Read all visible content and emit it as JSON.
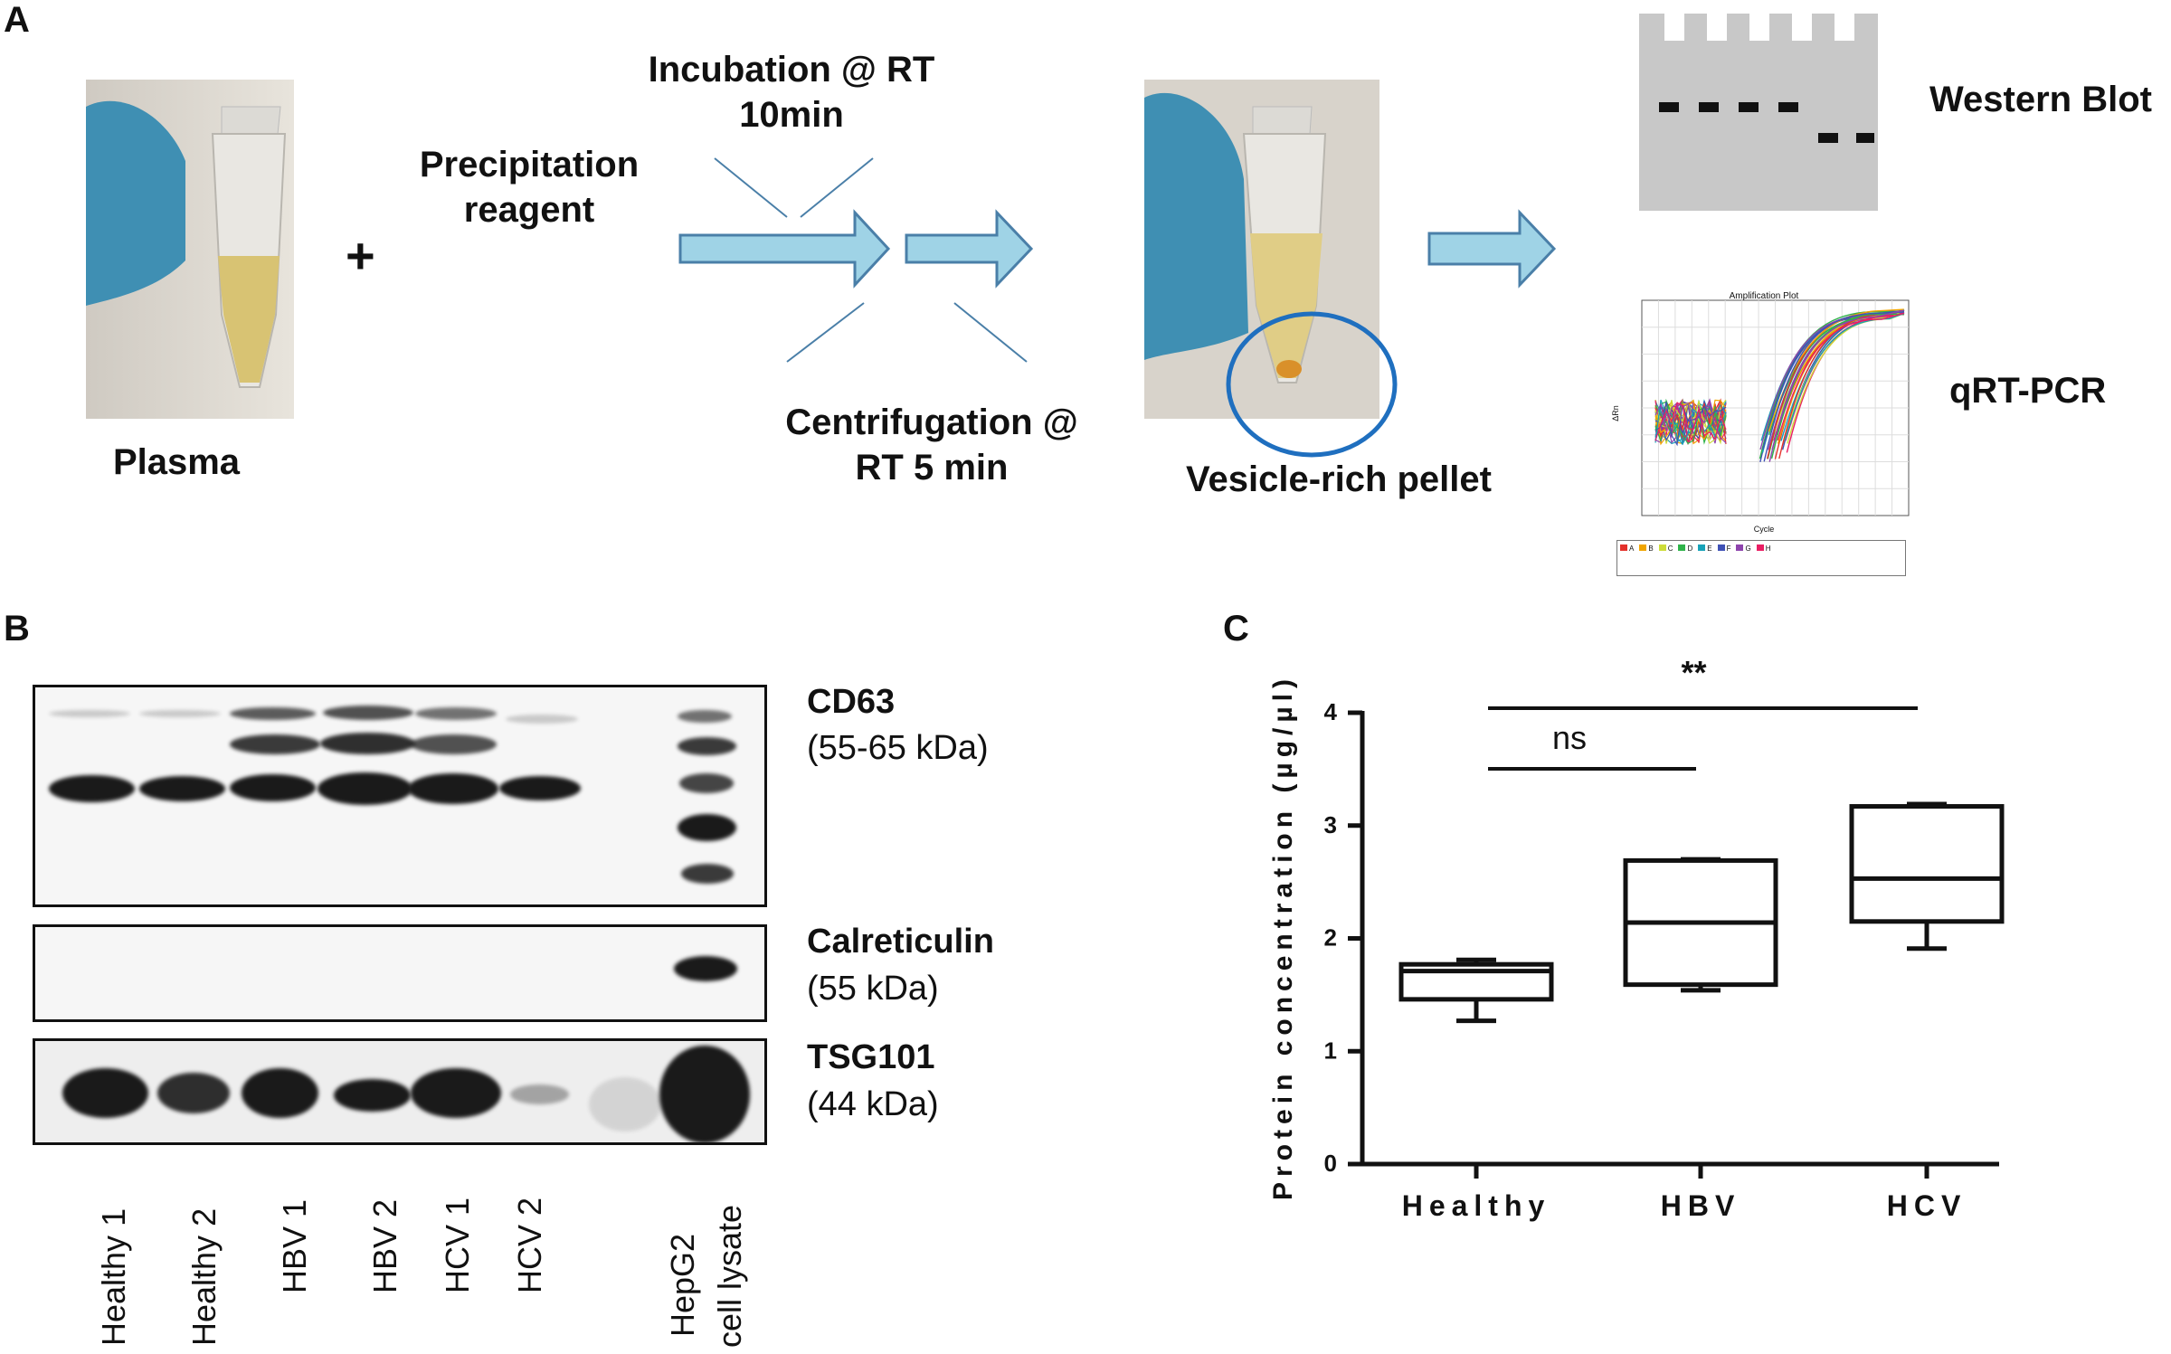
{
  "panel_a": {
    "letter": "A",
    "plasma_label": "Plasma",
    "plus_sign": "+",
    "reagent_line1": "Precipitation",
    "reagent_line2": "reagent",
    "incubation_line1": "Incubation @ RT",
    "incubation_line2": "10min",
    "centrifugation_line1": "Centrifugation @",
    "centrifugation_line2": "RT 5 min",
    "pellet_label": "Vesicle-rich pellet",
    "western_label": "Western Blot",
    "qpcr_label": "qRT-PCR",
    "qpcr_plot_title": "Amplification Plot",
    "qpcr_xlabel": "Cycle",
    "qpcr_ylabel": "ΔRn",
    "qpcr_legend": [
      "A",
      "B",
      "C",
      "D",
      "E",
      "F",
      "G",
      "H"
    ],
    "colors": {
      "arrow_fill": "#9fd3e6",
      "arrow_stroke": "#4a7fa8",
      "glove": "#3f8fb3",
      "circle": "#1f6fbf",
      "gel": "#c8c8c8"
    }
  },
  "panel_b": {
    "letter": "B",
    "bands": [
      {
        "name": "CD63",
        "kda": "(55-65 kDa)"
      },
      {
        "name": "Calreticulin",
        "kda": "(55 kDa)"
      },
      {
        "name": "TSG101",
        "kda": "(44 kDa)"
      }
    ],
    "lanes": [
      "Healthy 1",
      "Healthy 2",
      "HBV 1",
      "HBV 2",
      "HCV 1",
      "HCV 2"
    ],
    "lysate_line1": "HepG2",
    "lysate_line2": "cell lysate"
  },
  "panel_c": {
    "letter": "C"
  },
  "chart_data": {
    "type": "box",
    "categories": [
      "Healthy",
      "HBV",
      "HCV"
    ],
    "ylabel": "Protein concentration (µg/µl)",
    "ylim": [
      0,
      4
    ],
    "yticks": [
      0,
      1,
      2,
      3,
      4
    ],
    "boxes": [
      {
        "category": "Healthy",
        "min": 1.27,
        "q1": 1.46,
        "median": 1.71,
        "q3": 1.77,
        "max": 1.81
      },
      {
        "category": "HBV",
        "min": 1.54,
        "q1": 1.59,
        "median": 2.14,
        "q3": 2.69,
        "max": 2.7
      },
      {
        "category": "HCV",
        "min": 1.91,
        "q1": 2.15,
        "median": 2.53,
        "q3": 3.17,
        "max": 3.19
      }
    ],
    "significance": [
      {
        "from": "Healthy",
        "to": "HBV",
        "label": "ns"
      },
      {
        "from": "Healthy",
        "to": "HCV",
        "label": "**"
      }
    ]
  }
}
